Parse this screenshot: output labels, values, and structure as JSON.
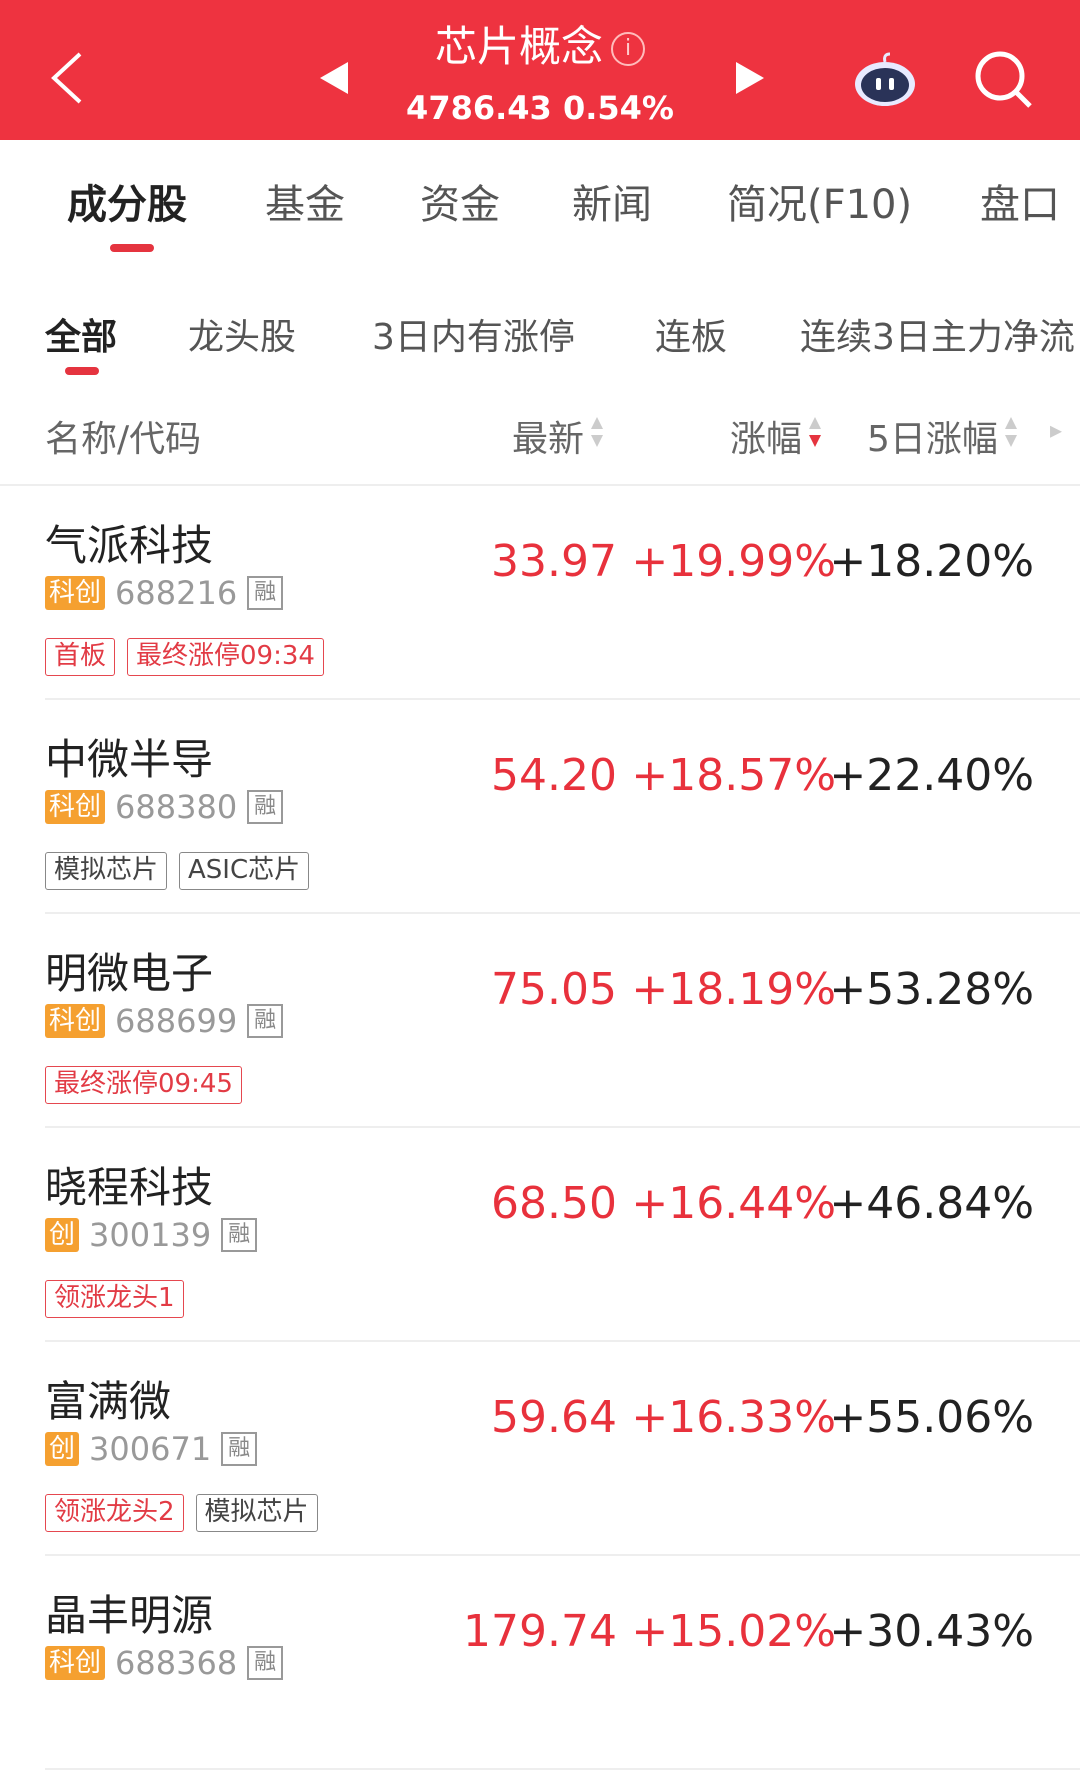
{
  "header": {
    "title": "芯片概念",
    "index_value": "4786.43",
    "index_change": "0.54%",
    "icons": [
      "back-chevron-icon",
      "prev-triangle-icon",
      "info-icon",
      "next-triangle-icon",
      "robot-assistant-icon",
      "search-icon"
    ],
    "bg_color": "#ee3340"
  },
  "tabs": [
    {
      "label": "成分股",
      "active": true
    },
    {
      "label": "基金"
    },
    {
      "label": "资金"
    },
    {
      "label": "新闻"
    },
    {
      "label": "简况(F10)"
    },
    {
      "label": "盘口"
    }
  ],
  "subtabs": [
    {
      "label": "全部",
      "active": true
    },
    {
      "label": "龙头股"
    },
    {
      "label": "3日内有涨停"
    },
    {
      "label": "连板"
    },
    {
      "label": "连续3日主力净流"
    }
  ],
  "columns": {
    "name": "名称/代码",
    "latest": "最新",
    "change": "涨幅",
    "change_5d": "5日涨幅",
    "sorted_column": "涨幅",
    "sort_direction": "desc"
  },
  "rows": [
    {
      "name": "气派科技",
      "board": "科创",
      "code": "688216",
      "margin": "融",
      "tags": [
        {
          "text": "首板",
          "style": "red"
        },
        {
          "text": "最终涨停09:34",
          "style": "red"
        }
      ],
      "price": "33.97",
      "change": "+19.99%",
      "change_5d": "+18.20%"
    },
    {
      "name": "中微半导",
      "board": "科创",
      "code": "688380",
      "margin": "融",
      "tags": [
        {
          "text": "模拟芯片",
          "style": "gray"
        },
        {
          "text": "ASIC芯片",
          "style": "gray"
        }
      ],
      "price": "54.20",
      "change": "+18.57%",
      "change_5d": "+22.40%"
    },
    {
      "name": "明微电子",
      "board": "科创",
      "code": "688699",
      "margin": "融",
      "tags": [
        {
          "text": "最终涨停09:45",
          "style": "red"
        }
      ],
      "price": "75.05",
      "change": "+18.19%",
      "change_5d": "+53.28%"
    },
    {
      "name": "晓程科技",
      "board": "创",
      "code": "300139",
      "margin": "融",
      "tags": [
        {
          "text": "领涨龙头1",
          "style": "red"
        }
      ],
      "price": "68.50",
      "change": "+16.44%",
      "change_5d": "+46.84%"
    },
    {
      "name": "富满微",
      "board": "创",
      "code": "300671",
      "margin": "融",
      "tags": [
        {
          "text": "领涨龙头2",
          "style": "red"
        },
        {
          "text": "模拟芯片",
          "style": "gray"
        }
      ],
      "price": "59.64",
      "change": "+16.33%",
      "change_5d": "+55.06%"
    },
    {
      "name": "晶丰明源",
      "board": "科创",
      "code": "688368",
      "margin": "融",
      "tags": [],
      "price": "179.74",
      "change": "+15.02%",
      "change_5d": "+30.43%"
    }
  ]
}
